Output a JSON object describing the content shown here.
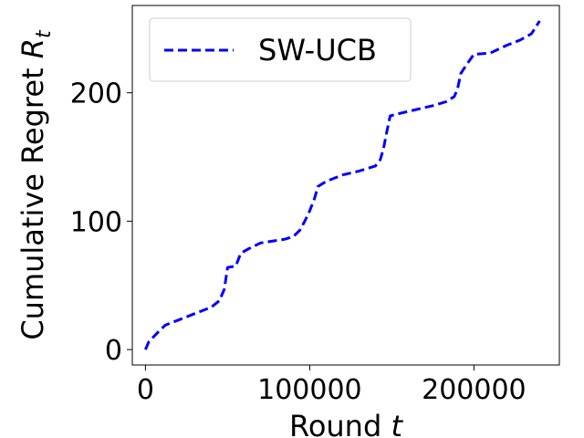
{
  "chart_data": {
    "type": "line",
    "xlabel": "Round",
    "xlabel_var": "t",
    "ylabel": "Cumulative Regret",
    "ylabel_var": "R",
    "ylabel_sub": "t",
    "xlim": [
      -8000,
      252000
    ],
    "ylim": [
      -12,
      268
    ],
    "xticks": [
      0,
      100000,
      200000
    ],
    "xtick_labels": [
      "0",
      "100000",
      "200000"
    ],
    "yticks": [
      0,
      100,
      200
    ],
    "ytick_labels": [
      "0",
      "100",
      "200"
    ],
    "grid": false,
    "legend": {
      "position": "top-left"
    },
    "series": [
      {
        "name": "SW-UCB",
        "color": "#0000ff",
        "style": "dashed",
        "x": [
          0,
          2000,
          5000,
          8000,
          12000,
          20000,
          30000,
          40000,
          45000,
          48000,
          50000,
          55000,
          58000,
          62000,
          70000,
          80000,
          85000,
          90000,
          94000,
          97000,
          100000,
          103000,
          105000,
          110000,
          120000,
          130000,
          135000,
          140000,
          143000,
          145000,
          147000,
          149000,
          155000,
          165000,
          175000,
          183000,
          188000,
          190000,
          192000,
          195000,
          200000,
          210000,
          220000,
          228000,
          235000,
          240000
        ],
        "y": [
          0,
          6,
          10,
          14,
          19,
          23,
          28,
          33,
          38,
          47,
          64,
          65,
          75,
          78,
          83,
          85,
          86,
          88,
          93,
          100,
          108,
          118,
          127,
          131,
          136,
          139,
          141,
          143,
          148,
          157,
          170,
          182,
          184,
          187,
          190,
          193,
          197,
          203,
          215,
          221,
          230,
          231,
          237,
          241,
          246,
          256
        ]
      }
    ]
  }
}
